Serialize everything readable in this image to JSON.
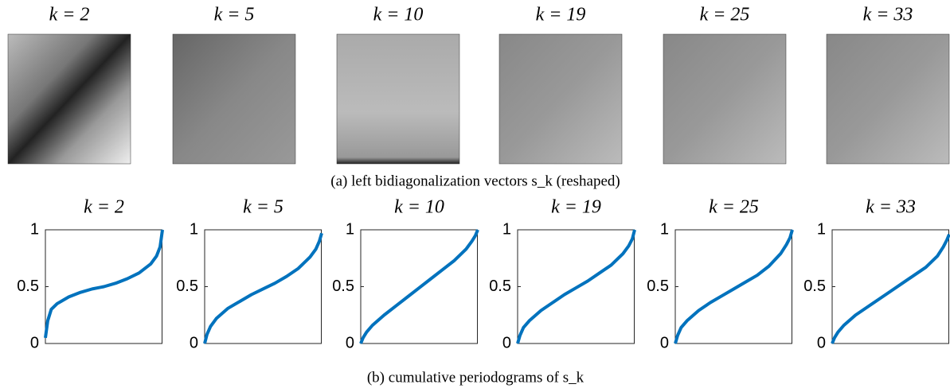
{
  "figure": {
    "images": [
      {
        "title": "k = 2"
      },
      {
        "title": "k = 5"
      },
      {
        "title": "k = 10"
      },
      {
        "title": "k = 19"
      },
      {
        "title": "k = 25"
      },
      {
        "title": "k = 33"
      }
    ],
    "caption_a": "(a) left bidiagonalization vectors s_k (reshaped)",
    "caption_b": "(b) cumulative periodograms of s_k"
  },
  "chart_data": [
    {
      "type": "line",
      "title": "k = 2",
      "color": "#0072bd",
      "xlim": [
        0,
        1
      ],
      "ylim": [
        0,
        1
      ],
      "yticks": [
        0,
        0.5,
        1
      ],
      "x": [
        0,
        0.02,
        0.05,
        0.1,
        0.2,
        0.3,
        0.4,
        0.5,
        0.6,
        0.7,
        0.8,
        0.9,
        0.95,
        0.98,
        1
      ],
      "values": [
        0.05,
        0.2,
        0.3,
        0.35,
        0.41,
        0.45,
        0.48,
        0.5,
        0.53,
        0.57,
        0.62,
        0.7,
        0.77,
        0.85,
        1
      ]
    },
    {
      "type": "line",
      "title": "k = 5",
      "color": "#0072bd",
      "xlim": [
        0,
        1
      ],
      "ylim": [
        0,
        1
      ],
      "yticks": [
        0,
        0.5,
        1
      ],
      "x": [
        0,
        0.02,
        0.05,
        0.1,
        0.2,
        0.3,
        0.4,
        0.5,
        0.6,
        0.7,
        0.8,
        0.9,
        0.95,
        0.98,
        1
      ],
      "values": [
        0,
        0.08,
        0.15,
        0.22,
        0.31,
        0.37,
        0.43,
        0.48,
        0.53,
        0.59,
        0.66,
        0.76,
        0.83,
        0.9,
        0.97
      ]
    },
    {
      "type": "line",
      "title": "k = 10",
      "color": "#0072bd",
      "xlim": [
        0,
        1
      ],
      "ylim": [
        0,
        1
      ],
      "yticks": [
        0,
        0.5,
        1
      ],
      "x": [
        0,
        0.02,
        0.05,
        0.1,
        0.2,
        0.3,
        0.4,
        0.5,
        0.6,
        0.7,
        0.8,
        0.9,
        0.95,
        0.98,
        1
      ],
      "values": [
        0,
        0.05,
        0.1,
        0.16,
        0.25,
        0.33,
        0.41,
        0.49,
        0.57,
        0.65,
        0.73,
        0.83,
        0.9,
        0.95,
        1
      ]
    },
    {
      "type": "line",
      "title": "k = 19",
      "color": "#0072bd",
      "xlim": [
        0,
        1
      ],
      "ylim": [
        0,
        1
      ],
      "yticks": [
        0,
        0.5,
        1
      ],
      "x": [
        0,
        0.02,
        0.05,
        0.1,
        0.2,
        0.3,
        0.4,
        0.5,
        0.6,
        0.7,
        0.8,
        0.9,
        0.95,
        0.98,
        1
      ],
      "values": [
        0,
        0.07,
        0.14,
        0.2,
        0.29,
        0.36,
        0.43,
        0.49,
        0.55,
        0.62,
        0.69,
        0.79,
        0.86,
        0.92,
        1
      ]
    },
    {
      "type": "line",
      "title": "k = 25",
      "color": "#0072bd",
      "xlim": [
        0,
        1
      ],
      "ylim": [
        0,
        1
      ],
      "yticks": [
        0,
        0.5,
        1
      ],
      "x": [
        0,
        0.02,
        0.05,
        0.1,
        0.2,
        0.3,
        0.4,
        0.5,
        0.6,
        0.7,
        0.8,
        0.9,
        0.95,
        0.98,
        1
      ],
      "values": [
        0,
        0.07,
        0.14,
        0.2,
        0.29,
        0.36,
        0.42,
        0.48,
        0.54,
        0.6,
        0.68,
        0.79,
        0.87,
        0.93,
        1
      ]
    },
    {
      "type": "line",
      "title": "k = 33",
      "color": "#0072bd",
      "xlim": [
        0,
        1
      ],
      "ylim": [
        0,
        1
      ],
      "yticks": [
        0,
        0.5,
        1
      ],
      "x": [
        0,
        0.02,
        0.05,
        0.1,
        0.2,
        0.3,
        0.4,
        0.5,
        0.6,
        0.7,
        0.8,
        0.9,
        0.95,
        0.98,
        1
      ],
      "values": [
        0,
        0.05,
        0.1,
        0.16,
        0.25,
        0.32,
        0.39,
        0.46,
        0.53,
        0.6,
        0.67,
        0.77,
        0.85,
        0.91,
        0.96
      ]
    }
  ]
}
